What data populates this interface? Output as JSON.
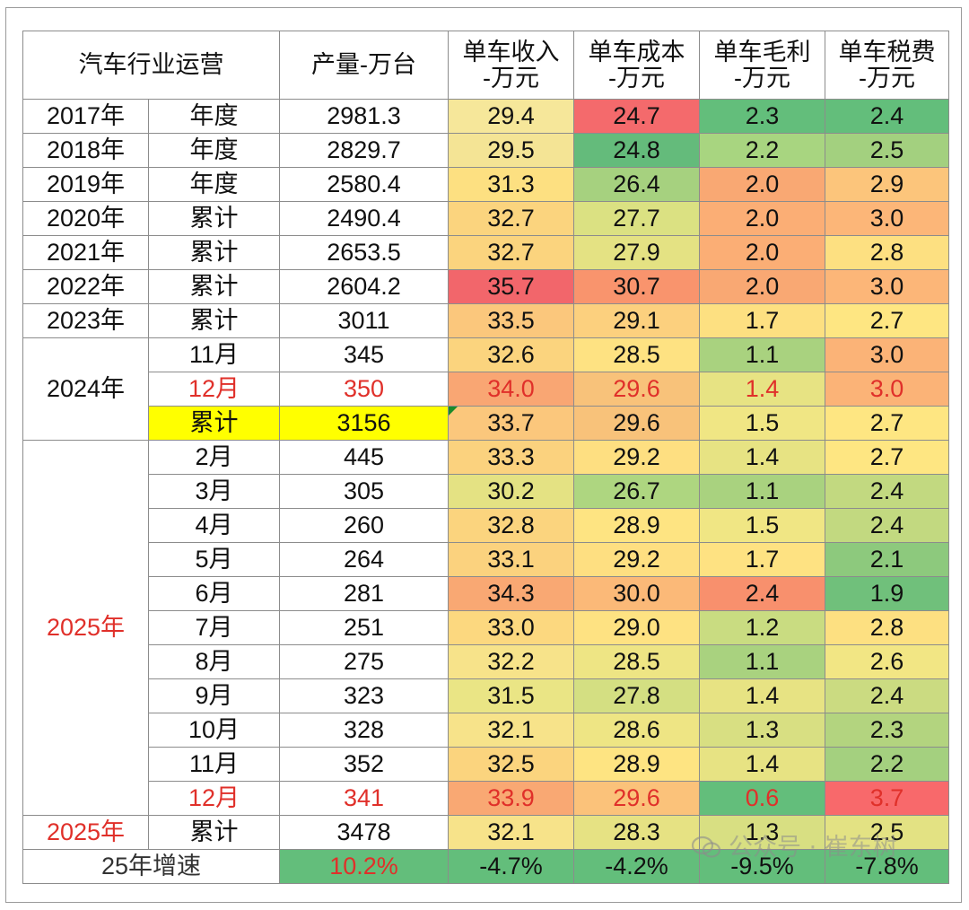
{
  "header": {
    "industry": "汽车行业运营",
    "output": "产量-万台",
    "revenue": "单车收入\n-万元",
    "cost": "单车成本\n-万元",
    "gross_profit": "单车毛利\n-万元",
    "tax": "单车税费\n-万元"
  },
  "rows": [
    {
      "year": "2017年",
      "period": "年度",
      "output": "2981.3",
      "revenue": "29.4",
      "cost": "24.7",
      "gross_profit": "2.3",
      "tax": "2.4"
    },
    {
      "year": "2018年",
      "period": "年度",
      "output": "2829.7",
      "revenue": "29.5",
      "cost": "24.8",
      "gross_profit": "2.2",
      "tax": "2.5"
    },
    {
      "year": "2019年",
      "period": "年度",
      "output": "2580.4",
      "revenue": "31.3",
      "cost": "26.4",
      "gross_profit": "2.0",
      "tax": "2.9"
    },
    {
      "year": "2020年",
      "period": "累计",
      "output": "2490.4",
      "revenue": "32.7",
      "cost": "27.7",
      "gross_profit": "2.0",
      "tax": "3.0"
    },
    {
      "year": "2021年",
      "period": "累计",
      "output": "2653.5",
      "revenue": "32.7",
      "cost": "27.9",
      "gross_profit": "2.0",
      "tax": "2.8"
    },
    {
      "year": "2022年",
      "period": "累计",
      "output": "2604.2",
      "revenue": "35.7",
      "cost": "30.7",
      "gross_profit": "2.0",
      "tax": "3.0"
    },
    {
      "year": "2023年",
      "period": "累计",
      "output": "3011",
      "revenue": "33.5",
      "cost": "29.1",
      "gross_profit": "1.7",
      "tax": "2.7"
    },
    {
      "year": "2024年",
      "period": "11月",
      "output": "345",
      "revenue": "32.6",
      "cost": "28.5",
      "gross_profit": "1.1",
      "tax": "3.0"
    },
    {
      "year": "",
      "period": "12月",
      "output": "350",
      "revenue": "34.0",
      "cost": "29.6",
      "gross_profit": "1.4",
      "tax": "3.0"
    },
    {
      "year": "",
      "period": "累计",
      "output": "3156",
      "revenue": "33.7",
      "cost": "29.6",
      "gross_profit": "1.5",
      "tax": "2.7"
    },
    {
      "year": "2025年",
      "period": "2月",
      "output": "445",
      "revenue": "33.3",
      "cost": "29.2",
      "gross_profit": "1.4",
      "tax": "2.7"
    },
    {
      "year": "",
      "period": "3月",
      "output": "305",
      "revenue": "30.2",
      "cost": "26.7",
      "gross_profit": "1.1",
      "tax": "2.4"
    },
    {
      "year": "",
      "period": "4月",
      "output": "260",
      "revenue": "32.8",
      "cost": "28.9",
      "gross_profit": "1.5",
      "tax": "2.4"
    },
    {
      "year": "",
      "period": "5月",
      "output": "264",
      "revenue": "33.1",
      "cost": "29.2",
      "gross_profit": "1.7",
      "tax": "2.1"
    },
    {
      "year": "",
      "period": "6月",
      "output": "281",
      "revenue": "34.3",
      "cost": "30.0",
      "gross_profit": "2.4",
      "tax": "1.9"
    },
    {
      "year": "",
      "period": "7月",
      "output": "251",
      "revenue": "33.0",
      "cost": "29.0",
      "gross_profit": "1.2",
      "tax": "2.8"
    },
    {
      "year": "",
      "period": "8月",
      "output": "275",
      "revenue": "32.2",
      "cost": "28.5",
      "gross_profit": "1.1",
      "tax": "2.6"
    },
    {
      "year": "",
      "period": "9月",
      "output": "323",
      "revenue": "31.5",
      "cost": "27.8",
      "gross_profit": "1.4",
      "tax": "2.4"
    },
    {
      "year": "",
      "period": "10月",
      "output": "328",
      "revenue": "32.1",
      "cost": "28.6",
      "gross_profit": "1.3",
      "tax": "2.3"
    },
    {
      "year": "",
      "period": "11月",
      "output": "352",
      "revenue": "32.5",
      "cost": "28.9",
      "gross_profit": "1.4",
      "tax": "2.2"
    },
    {
      "year": "",
      "period": "12月",
      "output": "341",
      "revenue": "33.9",
      "cost": "29.6",
      "gross_profit": "0.6",
      "tax": "3.7"
    },
    {
      "year": "2025年",
      "period": "累计",
      "output": "3478",
      "revenue": "32.1",
      "cost": "28.3",
      "gross_profit": "1.3",
      "tax": "2.5"
    }
  ],
  "growth": {
    "label": "25年增速",
    "output": "10.2%",
    "revenue": "-4.7%",
    "cost": "-4.2%",
    "gross_profit": "-9.5%",
    "tax": "-7.8%"
  },
  "colors": {
    "revenue": [
      "#f6e79a",
      "#f4e495",
      "#fde081",
      "#fbd47e",
      "#fbd47e",
      "#f2666b",
      "#fbc77c",
      "#fbd47e",
      "#f9a673",
      "#fbc77c",
      "#fbd27e",
      "#e4e283",
      "#fbd47e",
      "#fbd27e",
      "#f9a873",
      "#fcd87f",
      "#f7e38a",
      "#eae585",
      "#f7e38a",
      "#fbd47e",
      "#f9a873",
      "#f7e38a"
    ],
    "cost": [
      "#f46a6c",
      "#64bb7b",
      "#a6d17f",
      "#dbe182",
      "#e4e283",
      "#f9946d",
      "#fcd07e",
      "#fee282",
      "#f8c27a",
      "#f8c27a",
      "#fedf81",
      "#aed680",
      "#fee482",
      "#fedf81",
      "#fbb978",
      "#fee282",
      "#eee584",
      "#d4df82",
      "#eee584",
      "#fee482",
      "#fbc27a",
      "#e6e283"
    ],
    "gross_profit": [
      "#63be7b",
      "#a8d580",
      "#f9a873",
      "#fbae75",
      "#fbae75",
      "#f9a873",
      "#fde081",
      "#a9d27f",
      "#e7e383",
      "#f0e684",
      "#e7e383",
      "#a9d27f",
      "#f0e684",
      "#fee282",
      "#f8906d",
      "#c9dc81",
      "#a9d27f",
      "#e7e383",
      "#d8df82",
      "#e7e383",
      "#63be7b",
      "#d8df82"
    ],
    "tax": [
      "#63be7b",
      "#a3d07f",
      "#fcc57b",
      "#fcb678",
      "#fde081",
      "#fcb678",
      "#fee682",
      "#fbb377",
      "#fbb377",
      "#fee682",
      "#fee682",
      "#c2d980",
      "#c2d980",
      "#8dc97d",
      "#70c07b",
      "#fde081",
      "#f2e684",
      "#cbdb81",
      "#b3d47f",
      "#a4d07f",
      "#f8696b",
      "#e3e283"
    ],
    "growth": "#63be7b",
    "highlight": "#ffff00",
    "accent_red": "#e0302a"
  },
  "red_rows": [
    8,
    20
  ],
  "watermark": "公众号 · 崔东树"
}
